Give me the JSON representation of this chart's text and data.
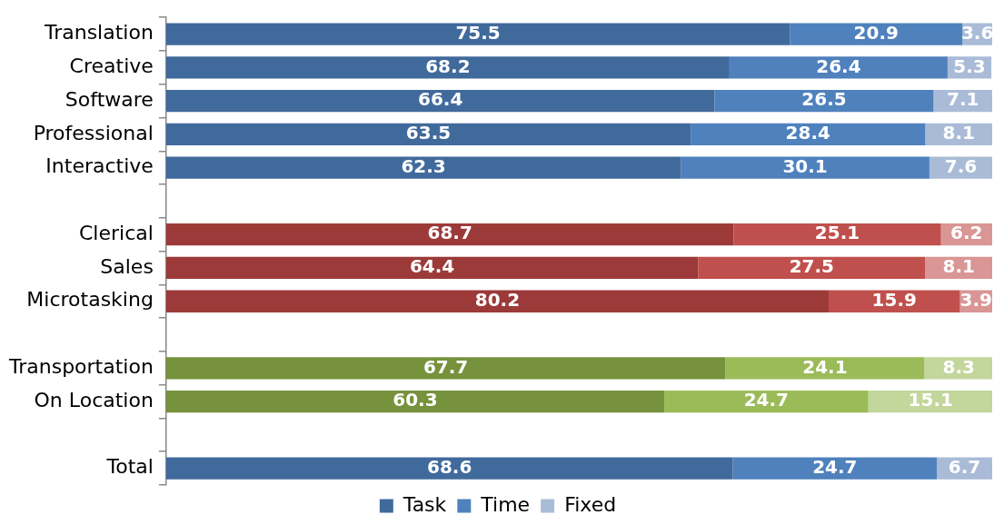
{
  "chart_data": {
    "type": "bar",
    "orientation": "horizontal",
    "stacked": true,
    "categories": [
      "Translation",
      "Creative",
      "Software",
      "Professional",
      "Interactive",
      null,
      "Clerical",
      "Sales",
      "Microtasking",
      null,
      "Transportation",
      "On Location",
      null,
      "Total"
    ],
    "series": [
      {
        "name": "Task",
        "colors": [
          "#416a9c",
          "#416a9c",
          "#416a9c",
          "#416a9c",
          "#416a9c",
          "#416a9c",
          "#9c3a3a",
          "#9c3a3a",
          "#9c3a3a",
          "#9c3a3a",
          "#76923c",
          "#76923c",
          "#76923c",
          "#416a9c"
        ],
        "values": [
          75.5,
          68.2,
          66.4,
          63.5,
          62.3,
          null,
          68.7,
          64.4,
          80.2,
          null,
          67.7,
          60.3,
          null,
          68.6
        ]
      },
      {
        "name": "Time",
        "colors": [
          "#4f81bd",
          "#4f81bd",
          "#4f81bd",
          "#4f81bd",
          "#4f81bd",
          "#4f81bd",
          "#c0504d",
          "#c0504d",
          "#c0504d",
          "#c0504d",
          "#9bbb59",
          "#9bbb59",
          "#9bbb59",
          "#4f81bd"
        ],
        "values": [
          20.9,
          26.4,
          26.5,
          28.4,
          30.1,
          null,
          25.1,
          27.5,
          15.9,
          null,
          24.1,
          24.7,
          null,
          24.7
        ]
      },
      {
        "name": "Fixed",
        "colors": [
          "#a9bbd7",
          "#a9bbd7",
          "#a9bbd7",
          "#a9bbd7",
          "#a9bbd7",
          "#a9bbd7",
          "#d99694",
          "#d99694",
          "#d99694",
          "#d99694",
          "#c3d69b",
          "#c3d69b",
          "#c3d69b",
          "#a9bbd7"
        ],
        "values": [
          3.6,
          5.3,
          7.1,
          8.1,
          7.6,
          null,
          6.2,
          8.1,
          3.9,
          null,
          8.3,
          15.1,
          null,
          6.7
        ]
      }
    ],
    "xlim": [
      0,
      100
    ],
    "tick_labels": "y",
    "grid": false,
    "legend": "bottom",
    "data_labels": true
  }
}
